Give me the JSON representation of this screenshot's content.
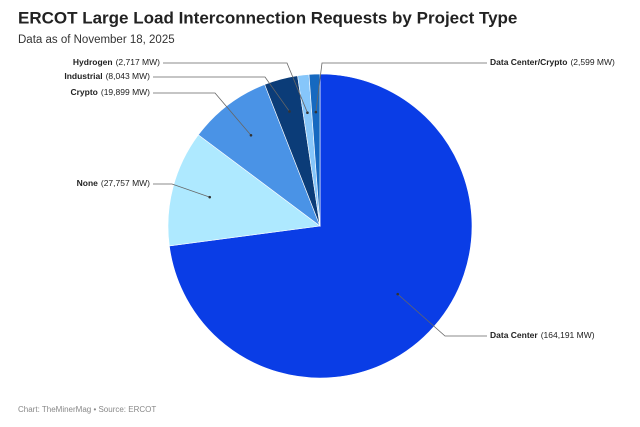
{
  "chart_data": {
    "type": "pie",
    "title": "ERCOT Large Load Interconnection Requests by Project Type",
    "subtitle": "Data as of November 18, 2025",
    "footer": "Chart: TheMinerMag • Source: ERCOT",
    "categories": [
      "Data Center",
      "None",
      "Crypto",
      "Industrial",
      "Hydrogen",
      "Data Center/Crypto"
    ],
    "values": [
      164191,
      27757,
      19899,
      8043,
      2717,
      2599
    ],
    "value_labels": [
      "(164,191 MW)",
      "(27,757 MW)",
      "(19,899 MW)",
      "(8,043 MW)",
      "(2,717 MW)",
      "(2,599 MW)"
    ],
    "colors": [
      "#0a3de6",
      "#aee9ff",
      "#4a93e6",
      "#0b3c78",
      "#86c6fa",
      "#1669c0"
    ]
  }
}
